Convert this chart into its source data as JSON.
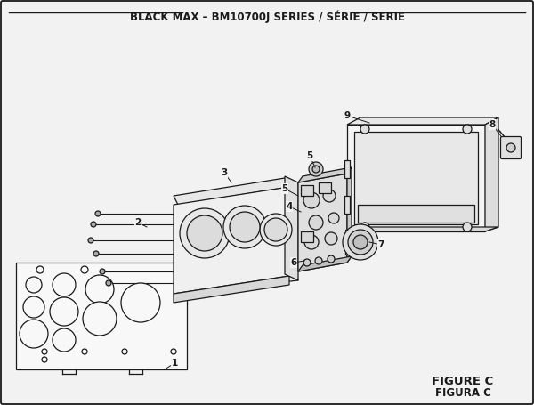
{
  "title": "BLACK MAX – BM10700J SERIES / SÉRIE / SERIE",
  "title_fontsize": 8.5,
  "figure_label": "FIGURE C",
  "figure_sublabel": "FIGURA C",
  "bg_color": "#f2f2f2",
  "line_color": "#1a1a1a",
  "fill_light": "#f0f0f0",
  "fill_mid": "#e0e0e0",
  "fill_dark": "#c8c8c8"
}
